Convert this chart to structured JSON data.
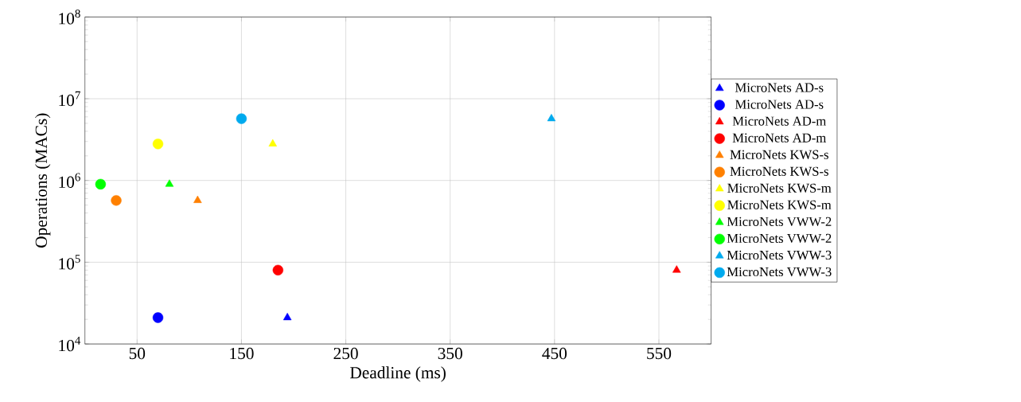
{
  "chart_data": {
    "type": "scatter",
    "xlabel": "Deadline (ms)",
    "ylabel": "Operations (MACs)",
    "xlim": [
      0,
      600
    ],
    "ylim": [
      10000,
      100000000
    ],
    "log": "y",
    "xticks": [
      50,
      150,
      250,
      350,
      450,
      550
    ],
    "yticks": [
      {
        "value": 10000,
        "label": "10$^{4}$"
      },
      {
        "value": 100000,
        "label": "10$^{5}$"
      },
      {
        "value": 1000000,
        "label": "10$^{6}$"
      },
      {
        "value": 10000000,
        "label": "10$^{7}$"
      },
      {
        "value": 100000000,
        "label": "10$^{8}$"
      }
    ],
    "grid": true,
    "legend": "right",
    "series": [
      {
        "name": "MicroNets AD-s",
        "color": "#0000ff",
        "marker": "triangle",
        "x": [
          194
        ],
        "values": [
          21000
        ]
      },
      {
        "name": "MicroNets AD-s",
        "color": "#0000ff",
        "marker": "circle",
        "x": [
          70
        ],
        "values": [
          21000
        ]
      },
      {
        "name": "MicroNets AD-m",
        "color": "#ff0000",
        "marker": "triangle",
        "x": [
          567
        ],
        "values": [
          80000
        ]
      },
      {
        "name": "MicroNets AD-m",
        "color": "#ff0000",
        "marker": "circle",
        "x": [
          185
        ],
        "values": [
          80000
        ]
      },
      {
        "name": "MicroNets KWS-s",
        "color": "#ff8000",
        "marker": "triangle",
        "x": [
          108
        ],
        "values": [
          570000
        ]
      },
      {
        "name": "MicroNets KWS-s",
        "color": "#ff8000",
        "marker": "circle",
        "x": [
          30
        ],
        "values": [
          570000
        ]
      },
      {
        "name": "MicroNets KWS-m",
        "color": "#ffff00",
        "marker": "triangle",
        "x": [
          180
        ],
        "values": [
          2800000
        ]
      },
      {
        "name": "MicroNets KWS-m",
        "color": "#ffff00",
        "marker": "circle",
        "x": [
          70
        ],
        "values": [
          2800000
        ]
      },
      {
        "name": "MicroNets VWW-2",
        "color": "#00ff00",
        "marker": "triangle",
        "x": [
          81
        ],
        "values": [
          900000
        ]
      },
      {
        "name": "MicroNets VWW-2",
        "color": "#00ff00",
        "marker": "circle",
        "x": [
          15
        ],
        "values": [
          900000
        ]
      },
      {
        "name": "MicroNets VWW-3",
        "color": "#00aaee",
        "marker": "triangle",
        "x": [
          447
        ],
        "values": [
          5700000
        ]
      },
      {
        "name": "MicroNets VWW-3",
        "color": "#00aaee",
        "marker": "circle",
        "x": [
          150
        ],
        "values": [
          5700000
        ]
      }
    ]
  }
}
